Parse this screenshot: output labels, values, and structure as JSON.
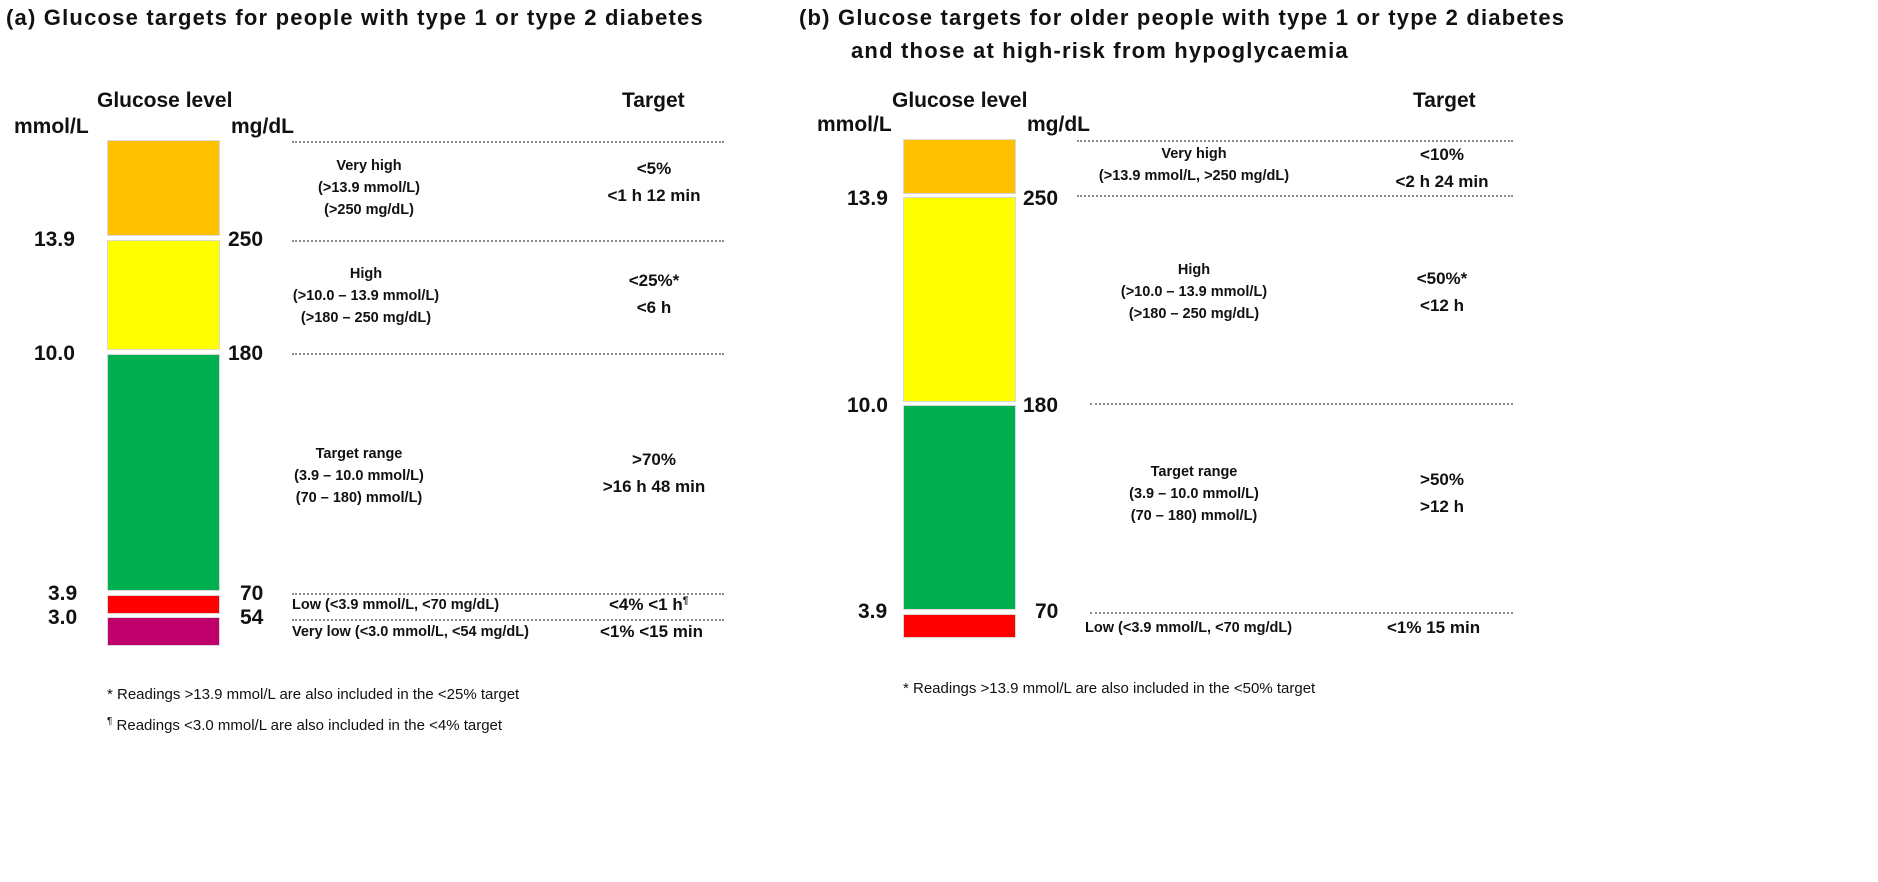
{
  "panel_a": {
    "title": "(a)   Glucose targets for people with type 1 or type 2 diabetes",
    "glucose_level": "Glucose level",
    "unit_mmol": "mmol/L",
    "unit_mg": "mg/dL",
    "target_header": "Target",
    "colors": {
      "very_high": "#ffc000",
      "high": "#ffff00",
      "target": "#00b050",
      "low": "#ff0000",
      "very_low": "#c0006a"
    },
    "ticks": [
      {
        "mmol": "13.9",
        "mg": "250"
      },
      {
        "mmol": "10.0",
        "mg": "180"
      },
      {
        "mmol": "3.9",
        "mg": "70"
      },
      {
        "mmol": "3.0",
        "mg": "54"
      }
    ],
    "very_high": {
      "name": "Very high",
      "mmol": "(>13.9 mmol/L)",
      "mg": "(>250 mg/dL)",
      "target_pct": "<5%",
      "target_time": "<1 h 12 min"
    },
    "high": {
      "name": "High",
      "mmol": "(>10.0 – 13.9 mmol/L)",
      "mg": "(>180 – 250 mg/dL)",
      "target_pct": "<25%*",
      "target_time": "<6 h"
    },
    "target_range": {
      "name": "Target range",
      "mmol": "(3.9 – 10.0 mmol/L)",
      "mg": "(70 – 180) mmol/L)",
      "target_pct": ">70%",
      "target_time": ">16 h 48 min"
    },
    "low": {
      "label": "Low (<3.9 mmol/L, <70 mg/dL)",
      "target": "<4%  <1 h",
      "mark": "¶"
    },
    "very_low": {
      "label": "Very low (<3.0 mmol/L, <54 mg/dL)",
      "target": "<1%  <15 min"
    },
    "footnote1": "* Readings >13.9 mmol/L are also included in the <25% target",
    "footnote2_mark": "¶",
    "footnote2": " Readings <3.0 mmol/L are also included in the <4% target"
  },
  "panel_b": {
    "title_line1": "(b)   Glucose targets for older people with type 1 or type 2 diabetes",
    "title_line2": "and those at high-risk from hypoglycaemia",
    "glucose_level": "Glucose level",
    "unit_mmol": "mmol/L",
    "unit_mg": "mg/dL",
    "target_header": "Target",
    "colors": {
      "very_high": "#ffc000",
      "high": "#ffff00",
      "target": "#00b050",
      "low": "#ff0000"
    },
    "ticks": [
      {
        "mmol": "13.9",
        "mg": "250"
      },
      {
        "mmol": "10.0",
        "mg": "180"
      },
      {
        "mmol": "3.9",
        "mg": "70"
      }
    ],
    "very_high": {
      "name": "Very high",
      "range": "(>13.9 mmol/L, >250 mg/dL)",
      "target_pct": "<10%",
      "target_time": "<2 h 24 min"
    },
    "high": {
      "name": "High",
      "mmol": "(>10.0 – 13.9 mmol/L)",
      "mg": "(>180 – 250 mg/dL)",
      "target_pct": "<50%*",
      "target_time": "<12 h"
    },
    "target_range": {
      "name": "Target range",
      "mmol": "(3.9 – 10.0 mmol/L)",
      "mg": "(70 – 180) mmol/L)",
      "target_pct": ">50%",
      "target_time": ">12 h"
    },
    "low": {
      "label": "Low (<3.9 mmol/L, <70 mg/dL)",
      "target": "<1%  15 min"
    },
    "footnote1": "* Readings >13.9 mmol/L are also included in the <50% target"
  }
}
